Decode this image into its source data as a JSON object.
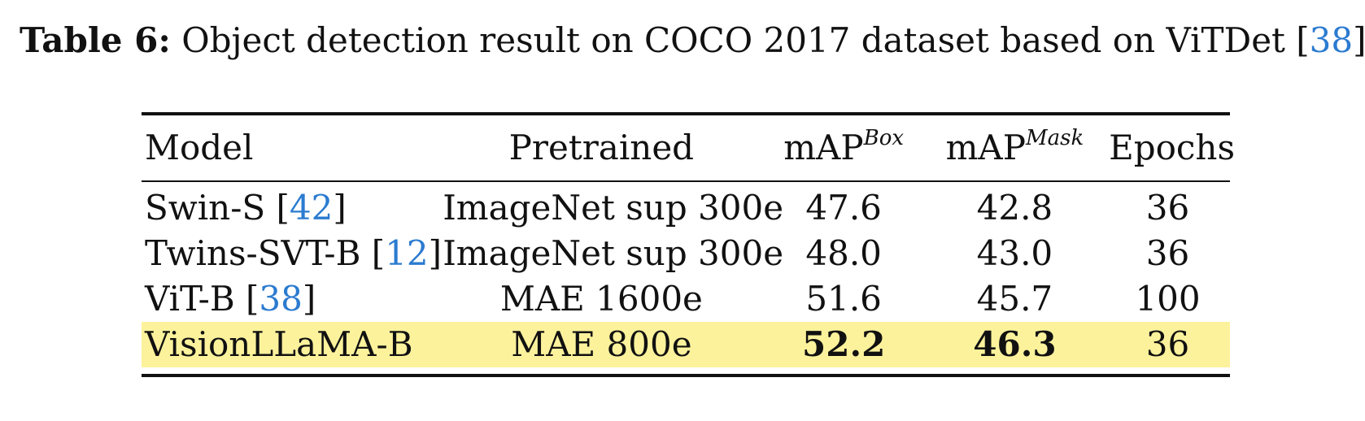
{
  "caption": {
    "label": "Table 6:",
    "text": " Object detection result on COCO 2017 dataset based on ViTDet [",
    "ref": "38",
    "tail": "]."
  },
  "table": {
    "headers": {
      "model": "Model",
      "pretrained": "Pretrained",
      "map_box": "mAP",
      "map_box_sup": "Box",
      "map_mask": "mAP",
      "map_mask_sup": "Mask",
      "epochs": "Epochs"
    },
    "rows": [
      {
        "model": "Swin-S [",
        "ref": "42",
        "close": "]",
        "pretrained": "ImageNet sup 300e",
        "map_box": "47.6",
        "map_mask": "42.8",
        "epochs": "36"
      },
      {
        "model": "Twins-SVT-B [",
        "ref": "12",
        "close": "]",
        "pretrained": "ImageNet sup 300e",
        "map_box": "48.0",
        "map_mask": "43.0",
        "epochs": "36"
      },
      {
        "model": "ViT-B [",
        "ref": "38",
        "close": "]",
        "pretrained": "MAE 1600e",
        "map_box": "51.6",
        "map_mask": "45.7",
        "epochs": "100"
      },
      {
        "model": "VisionLLaMA-B",
        "pretrained": "MAE 800e",
        "map_box": "52.2",
        "map_mask": "46.3",
        "epochs": "36"
      }
    ]
  },
  "colors": {
    "highlight": "#fdf29c",
    "citation": "#2b7bd0"
  }
}
